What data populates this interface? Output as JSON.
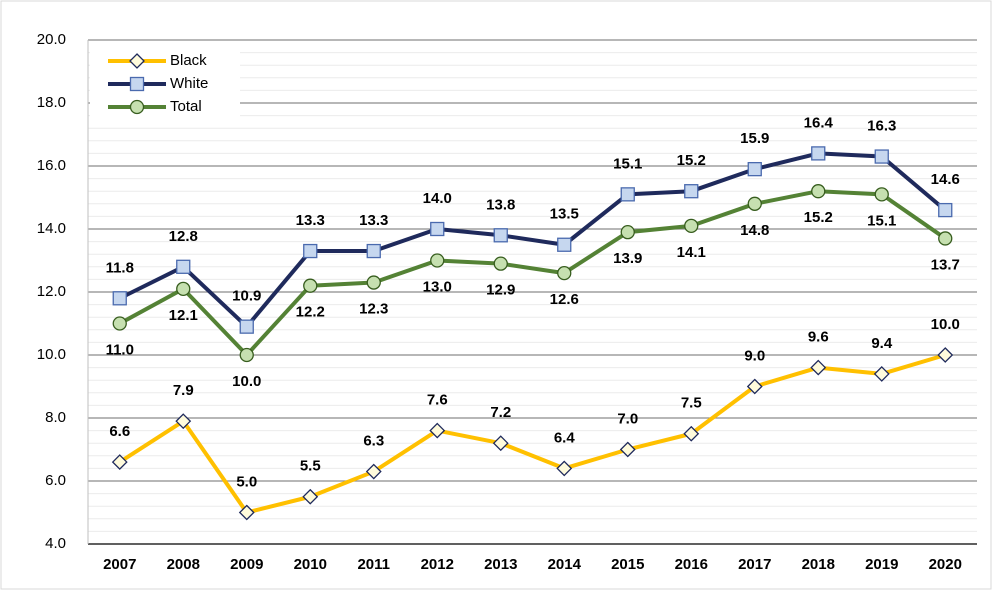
{
  "chart_data": {
    "type": "line",
    "categories": [
      "2007",
      "2008",
      "2009",
      "2010",
      "2011",
      "2012",
      "2013",
      "2014",
      "2015",
      "2016",
      "2017",
      "2018",
      "2019",
      "2020"
    ],
    "series": [
      {
        "name": "Black",
        "color": "#ffc000",
        "marker": "diamond",
        "values": [
          6.6,
          7.9,
          5.0,
          5.5,
          6.3,
          7.6,
          7.2,
          6.4,
          7.0,
          7.5,
          9.0,
          9.6,
          9.4,
          10.0
        ],
        "value_labels": [
          "6.6",
          "7.9",
          "5.0",
          "5.5",
          "6.3",
          "7.6",
          "7.2",
          "6.4",
          "7.0",
          "7.5",
          "9.0",
          "9.6",
          "9.4",
          "10.0"
        ]
      },
      {
        "name": "White",
        "color": "#1f2a5c",
        "marker": "square",
        "values": [
          11.8,
          12.8,
          10.9,
          13.3,
          13.3,
          14.0,
          13.8,
          13.5,
          15.1,
          15.2,
          15.9,
          16.4,
          16.3,
          14.6
        ],
        "value_labels": [
          "11.8",
          "12.8",
          "10.9",
          "13.3",
          "13.3",
          "14.0",
          "13.8",
          "13.5",
          "15.1",
          "15.2",
          "15.9",
          "16.4",
          "16.3",
          "14.6"
        ]
      },
      {
        "name": "Total",
        "color": "#548235",
        "marker": "circle",
        "values": [
          11.0,
          12.1,
          10.0,
          12.2,
          12.3,
          13.0,
          12.9,
          12.6,
          13.9,
          14.1,
          14.8,
          15.2,
          15.1,
          13.7
        ],
        "value_labels": [
          "11.0",
          "12.1",
          "10.0",
          "12.2",
          "12.3",
          "13.0",
          "12.9",
          "12.6",
          "13.9",
          "14.1",
          "14.8",
          "15.2",
          "15.1",
          "13.7"
        ]
      }
    ],
    "ylim": [
      4,
      20
    ],
    "yticks": [
      {
        "value": 4,
        "label": "4.0"
      },
      {
        "value": 6,
        "label": "6.0"
      },
      {
        "value": 8,
        "label": "8.0"
      },
      {
        "value": 10,
        "label": "10.0"
      },
      {
        "value": 12,
        "label": "12.0"
      },
      {
        "value": 14,
        "label": "14.0"
      },
      {
        "value": 16,
        "label": "16.0"
      },
      {
        "value": 18,
        "label": "18.0"
      },
      {
        "value": 20,
        "label": "20.0"
      }
    ],
    "grid": true,
    "legend": "top-left"
  }
}
